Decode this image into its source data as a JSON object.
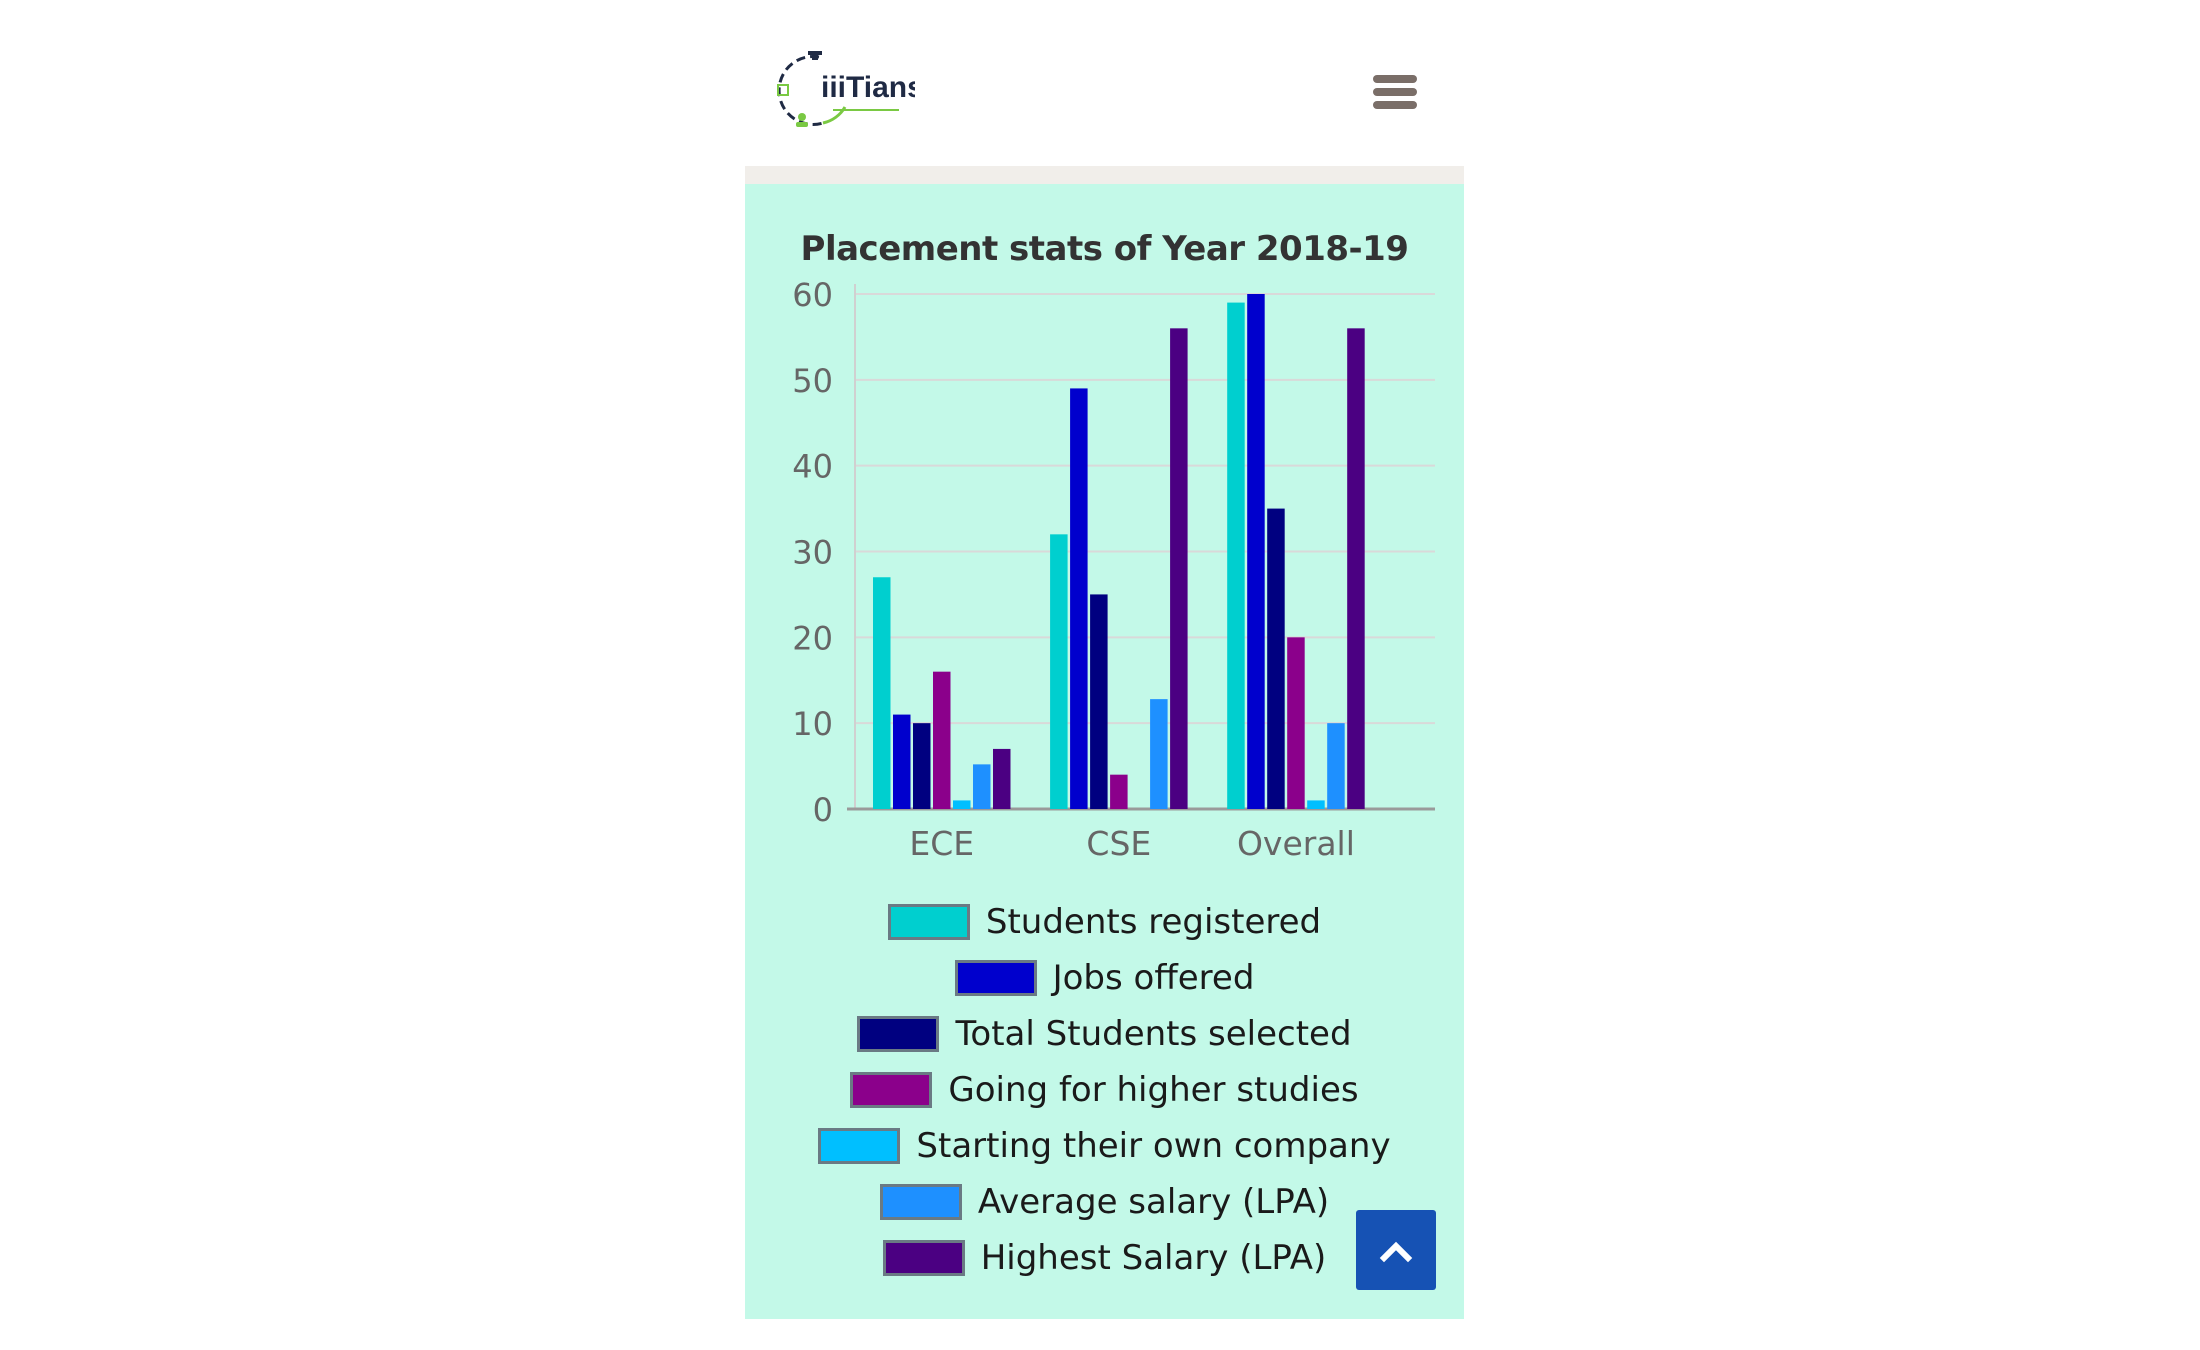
{
  "header": {
    "logo_text": "iiiTians",
    "menu_icon": "hamburger-menu-icon"
  },
  "colors": {
    "panel_background": "#c3f9e8",
    "scroll_button": "#1652b4",
    "menu_icon": "#7a6e68"
  },
  "scroll_top_icon": "chevron-up-icon",
  "chart_data": {
    "type": "bar",
    "title": "Placement stats of Year 2018-19",
    "xlabel": "",
    "ylabel": "",
    "categories": [
      "ECE",
      "CSE",
      "Overall"
    ],
    "ylim": [
      0,
      60
    ],
    "yticks": [
      0,
      10,
      20,
      30,
      40,
      50,
      60
    ],
    "grid": true,
    "legend_position": "bottom",
    "series": [
      {
        "name": "Students registered",
        "color": "#00cfcf",
        "values": [
          27,
          32,
          59
        ]
      },
      {
        "name": "Jobs offered",
        "color": "#0000cd",
        "values": [
          11,
          49,
          60
        ]
      },
      {
        "name": "Total Students selected",
        "color": "#000080",
        "values": [
          10,
          25,
          35
        ]
      },
      {
        "name": "Going for higher studies",
        "color": "#8b008b",
        "values": [
          16,
          4,
          20
        ]
      },
      {
        "name": "Starting their own company",
        "color": "#00bfff",
        "values": [
          1,
          0,
          1
        ]
      },
      {
        "name": "Average salary (LPA)",
        "color": "#1e90ff",
        "values": [
          5.2,
          12.8,
          10
        ]
      },
      {
        "name": "Highest Salary (LPA)",
        "color": "#4b0082",
        "values": [
          7,
          56,
          56
        ]
      }
    ]
  }
}
